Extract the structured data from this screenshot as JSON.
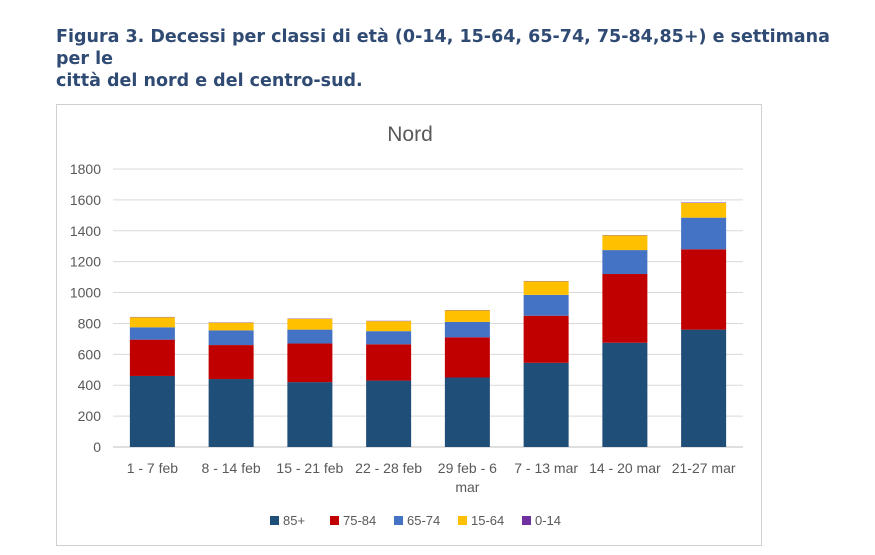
{
  "caption": {
    "line1": "Figura 3. Decessi per classi di età (0-14, 15-64, 65-74, 75-84,85+) e settimana per le",
    "line2": "città del nord e del centro-sud."
  },
  "chart_data": {
    "type": "bar",
    "stacked": true,
    "title": "Nord",
    "xlabel": "",
    "ylabel": "",
    "ylim": [
      0,
      1800
    ],
    "yticks": [
      0,
      200,
      400,
      600,
      800,
      1000,
      1200,
      1400,
      1600,
      1800
    ],
    "grid": true,
    "legend_position": "bottom",
    "categories": [
      [
        "1 - 7 feb"
      ],
      [
        "8 - 14 feb"
      ],
      [
        "15 - 21 feb"
      ],
      [
        "22 - 28 feb"
      ],
      [
        "29 feb - 6",
        "mar"
      ],
      [
        "7 - 13 mar"
      ],
      [
        "14 - 20 mar"
      ],
      [
        "21-27 mar"
      ]
    ],
    "series": [
      {
        "name": "85+",
        "color": "#1f4e79",
        "values": [
          460,
          440,
          420,
          430,
          450,
          545,
          675,
          760
        ]
      },
      {
        "name": "75-84",
        "color": "#c00000",
        "values": [
          235,
          220,
          250,
          235,
          260,
          305,
          445,
          520
        ]
      },
      {
        "name": "65-74",
        "color": "#4472c4",
        "values": [
          80,
          95,
          90,
          85,
          100,
          135,
          155,
          205
        ]
      },
      {
        "name": "15-64",
        "color": "#ffc000",
        "values": [
          65,
          50,
          70,
          65,
          75,
          88,
          95,
          95
        ]
      },
      {
        "name": "0-14",
        "color": "#7030a0",
        "values": [
          2,
          2,
          2,
          2,
          2,
          2,
          2,
          3
        ]
      }
    ]
  }
}
